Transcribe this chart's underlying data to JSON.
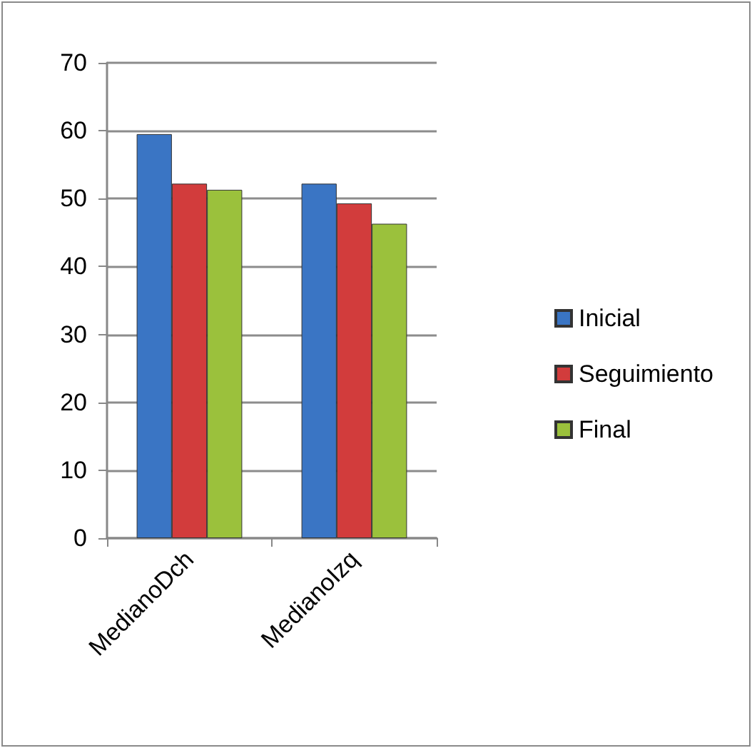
{
  "chart_data": {
    "type": "bar",
    "categories": [
      "MedianoDch",
      "MedianoIzq"
    ],
    "series": [
      {
        "name": "Inicial",
        "color": "#3a75c4",
        "values": [
          59.5,
          52.2
        ]
      },
      {
        "name": "Seguimiento",
        "color": "#d23c3c",
        "values": [
          52.2,
          49.3
        ]
      },
      {
        "name": "Final",
        "color": "#9bc13c",
        "values": [
          51.3,
          46.3
        ]
      }
    ],
    "ylim": [
      0,
      70
    ],
    "yticks": [
      0,
      10,
      20,
      30,
      40,
      50,
      60,
      70
    ],
    "grid": "y",
    "legend": "right"
  }
}
